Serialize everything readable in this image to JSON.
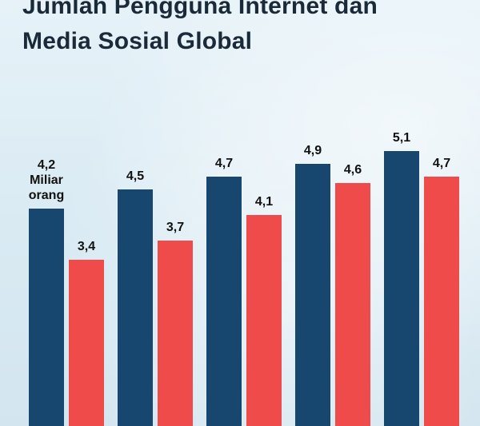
{
  "title_lines": [
    "Jumlah Pengguna Internet dan",
    "Media Sosial Global"
  ],
  "colors": {
    "internet": "#17476e",
    "social": "#ef4b4b"
  },
  "chart_data": {
    "type": "bar",
    "title": "Jumlah Pengguna Internet dan Media Sosial Global",
    "categories": [
      "",
      "",
      "",
      "",
      ""
    ],
    "series": [
      {
        "values": [
          4.2,
          4.5,
          4.7,
          4.9,
          5.1
        ],
        "labels": [
          "4,2",
          "4,5",
          "4,7",
          "4,9",
          "5,1"
        ]
      },
      {
        "values": [
          3.4,
          3.7,
          4.1,
          4.6,
          4.7
        ],
        "labels": [
          "3,4",
          "3,7",
          "4,1",
          "4,6",
          "4,7"
        ]
      }
    ],
    "unit_annotation": [
      "Miliar",
      "orang"
    ],
    "grid": false,
    "legend": "none"
  }
}
